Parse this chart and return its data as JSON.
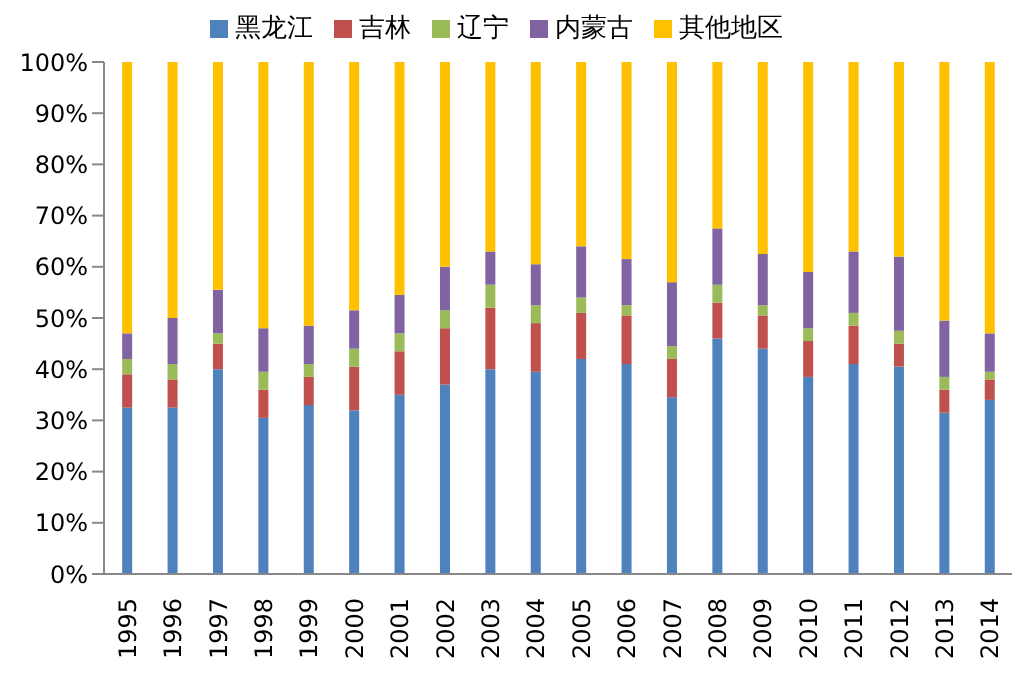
{
  "chart_data": {
    "type": "bar",
    "stacked": true,
    "legend": "top",
    "grid": false,
    "categories": [
      "1995",
      "1996",
      "1997",
      "1998",
      "1999",
      "2000",
      "2001",
      "2002",
      "2003",
      "2004",
      "2005",
      "2006",
      "2007",
      "2008",
      "2009",
      "2010",
      "2011",
      "2012",
      "2013",
      "2014"
    ],
    "series": [
      {
        "name": "黑龙江",
        "color": "#4f81bd",
        "values": [
          32.5,
          32.5,
          40,
          30.5,
          33,
          32,
          35,
          37,
          40,
          39.5,
          42,
          41,
          34.5,
          46,
          44,
          38.5,
          41,
          40.5,
          31.5,
          34
        ]
      },
      {
        "name": "吉林",
        "color": "#c0504d",
        "values": [
          6.5,
          5.5,
          5,
          5.5,
          5.5,
          8.5,
          8.5,
          11,
          12,
          9.5,
          9,
          9.5,
          7.5,
          7,
          6.5,
          7,
          7.5,
          4.5,
          4.5,
          4
        ]
      },
      {
        "name": "辽宁",
        "color": "#9bbb59",
        "values": [
          3,
          3,
          2,
          3.5,
          2.5,
          3.5,
          3.5,
          3.5,
          4.5,
          3.5,
          3,
          2,
          2.5,
          3.5,
          2,
          2.5,
          2.5,
          2.5,
          2.5,
          1.5
        ]
      },
      {
        "name": "内蒙古",
        "color": "#8064a2",
        "values": [
          5,
          9,
          8.5,
          8.5,
          7.5,
          7.5,
          7.5,
          8.5,
          6.5,
          8,
          10,
          9,
          12.5,
          11,
          10,
          11,
          12,
          14.5,
          11,
          7.5
        ]
      },
      {
        "name": "其他地区",
        "color": "#ffc000",
        "values": [
          53,
          50,
          44.5,
          52,
          51.5,
          48.5,
          45.5,
          40,
          37,
          39.5,
          36,
          38.5,
          43,
          32.5,
          37.5,
          41,
          37,
          38,
          50.5,
          53
        ]
      }
    ],
    "ylim": [
      0,
      100
    ],
    "yticks": [
      {
        "value": 0,
        "label": "0%"
      },
      {
        "value": 10,
        "label": "10%"
      },
      {
        "value": 20,
        "label": "20%"
      },
      {
        "value": 30,
        "label": "30%"
      },
      {
        "value": 40,
        "label": "40%"
      },
      {
        "value": 50,
        "label": "50%"
      },
      {
        "value": 60,
        "label": "60%"
      },
      {
        "value": 70,
        "label": "70%"
      },
      {
        "value": 80,
        "label": "80%"
      },
      {
        "value": 90,
        "label": "90%"
      },
      {
        "value": 100,
        "label": "100%"
      }
    ]
  }
}
